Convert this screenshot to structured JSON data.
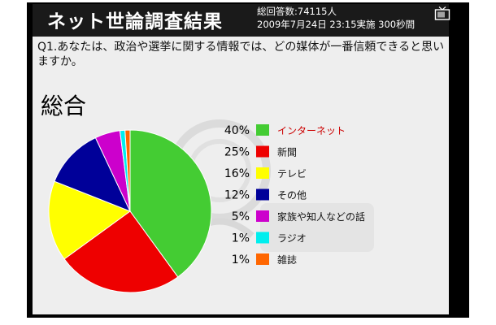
{
  "header": {
    "title": "ネット世論調査結果",
    "total_responses": "総回答数:74115人",
    "datetime": "2009年7月24日 23:15実施 300秒間"
  },
  "question": "Q1.あなたは、政治や選挙に関する情報では、どの媒体が一番信頼できると思いますか。",
  "colors": {
    "background": "#eeeeee",
    "frame": "#000000",
    "header_bg": "#1a1a1a",
    "header_text": "#ffffff"
  },
  "chart_data": {
    "type": "pie",
    "title": "総合",
    "unit": "%",
    "legend_position": "right",
    "slices": [
      {
        "label": "インターネット",
        "value": 40,
        "value_label": "40%",
        "color": "#44cc33",
        "label_color": "#cc0000"
      },
      {
        "label": "新聞",
        "value": 25,
        "value_label": "25%",
        "color": "#ee0000",
        "label_color": "#111111"
      },
      {
        "label": "テレビ",
        "value": 16,
        "value_label": "16%",
        "color": "#ffff00",
        "label_color": "#111111"
      },
      {
        "label": "その他",
        "value": 12,
        "value_label": "12%",
        "color": "#000099",
        "label_color": "#111111"
      },
      {
        "label": "家族や知人などの話",
        "value": 5,
        "value_label": "5%",
        "color": "#cc00cc",
        "label_color": "#111111"
      },
      {
        "label": "ラジオ",
        "value": 1,
        "value_label": "1%",
        "color": "#00eeee",
        "label_color": "#111111"
      },
      {
        "label": "雑誌",
        "value": 1,
        "value_label": "1%",
        "color": "#ff6600",
        "label_color": "#111111"
      }
    ]
  }
}
